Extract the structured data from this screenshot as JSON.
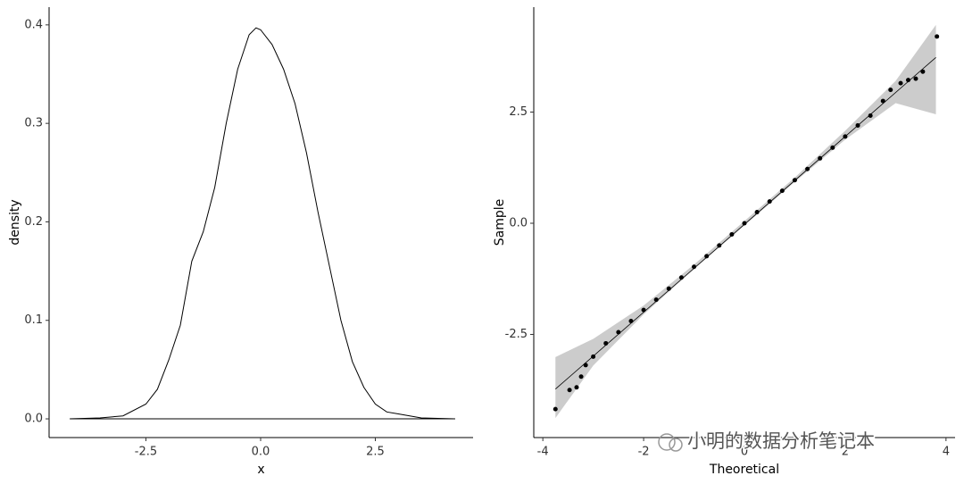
{
  "chart_data": [
    {
      "type": "density",
      "xlabel": "x",
      "ylabel": "density",
      "color": "#000000",
      "x": [
        -4.16,
        -3.5,
        -3.0,
        -2.5,
        -2.25,
        -2.0,
        -1.75,
        -1.5,
        -1.25,
        -1.0,
        -0.75,
        -0.5,
        -0.25,
        -0.1,
        0.0,
        0.25,
        0.5,
        0.75,
        1.0,
        1.25,
        1.5,
        1.75,
        2.0,
        2.25,
        2.5,
        2.75,
        3.0,
        3.25,
        3.5,
        4.24
      ],
      "values": [
        0,
        0.001,
        0.003,
        0.015,
        0.03,
        0.06,
        0.095,
        0.16,
        0.19,
        0.235,
        0.3,
        0.355,
        0.39,
        0.397,
        0.395,
        0.38,
        0.355,
        0.32,
        0.27,
        0.21,
        0.155,
        0.1,
        0.058,
        0.032,
        0.015,
        0.007,
        0.005,
        0.003,
        0.001,
        0
      ],
      "xlim": [
        -4.61,
        4.63
      ],
      "ylim": [
        -0.019,
        0.418
      ],
      "xticks": [
        -2.5,
        {
          "value": 0,
          "label": "0.0"
        },
        2.5
      ],
      "yticks": [
        {
          "value": 0,
          "label": "0.0"
        },
        0.1,
        0.2,
        0.3,
        0.4
      ]
    },
    {
      "type": "qq",
      "xlabel": "Theoretical",
      "ylabel": "Sample",
      "color": "#000000",
      "band_color": "#cccccc",
      "annotation": "小明的数据分析笔记本",
      "points": {
        "x": [
          -3.75,
          -3.47,
          -3.33,
          -3.24,
          -3.15,
          -3.0,
          -2.75,
          -2.5,
          -2.25,
          -2.0,
          -1.75,
          -1.5,
          -1.25,
          -1.0,
          -0.75,
          -0.5,
          -0.25,
          0.0,
          0.25,
          0.5,
          0.75,
          1.0,
          1.25,
          1.5,
          1.75,
          2.0,
          2.25,
          2.5,
          2.75,
          2.9,
          3.1,
          3.25,
          3.4,
          3.54,
          3.82
        ],
        "y": [
          -4.18,
          -3.75,
          -3.69,
          -3.45,
          -3.19,
          -3.0,
          -2.7,
          -2.45,
          -2.2,
          -1.95,
          -1.72,
          -1.47,
          -1.22,
          -0.98,
          -0.74,
          -0.5,
          -0.25,
          0.0,
          0.25,
          0.49,
          0.73,
          0.97,
          1.22,
          1.46,
          1.7,
          1.95,
          2.2,
          2.42,
          2.75,
          3.0,
          3.15,
          3.22,
          3.25,
          3.41,
          4.2
        ]
      },
      "fit": {
        "x": [
          -3.75,
          3.8
        ],
        "y": [
          -3.73,
          3.73
        ]
      },
      "band": {
        "x": [
          -3.75,
          -3.0,
          -2.0,
          -1.0,
          0.0,
          1.0,
          2.0,
          3.0,
          3.8
        ],
        "lower": [
          -4.38,
          -3.2,
          -2.05,
          -1.03,
          -0.05,
          0.93,
          1.88,
          2.7,
          2.45
        ],
        "upper": [
          -3.01,
          -2.6,
          -1.85,
          -0.93,
          0.05,
          1.03,
          2.08,
          3.2,
          4.46
        ]
      },
      "xlim": [
        -4.18,
        4.18
      ],
      "ylim": [
        -4.82,
        4.86
      ],
      "xticks": [
        -4,
        -2,
        0,
        2,
        4
      ],
      "yticks": [
        -2.5,
        {
          "value": 0,
          "label": "0.0"
        },
        2.5
      ]
    }
  ]
}
